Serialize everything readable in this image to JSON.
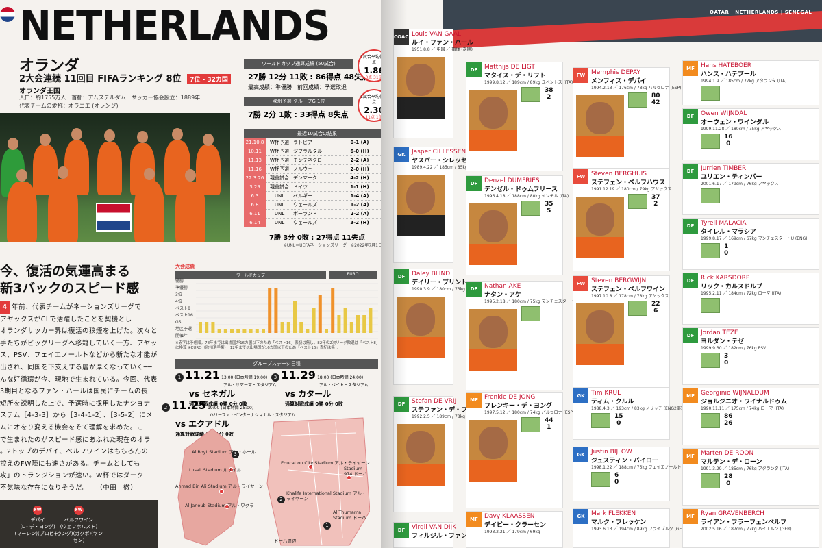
{
  "left": {
    "title": "NETHERLANDS",
    "jp_name": "オランダ",
    "sub_line": "2大会連続 11回目 FIFAランキング 8位",
    "rank_badge": "7位 - 32カ国",
    "kingdom": "オランダ王国",
    "info_1": "人口：約1755万人　首都：アムステルダム　サッカー協会設立：1889年",
    "info_2": "代表チームの愛称：オラニエ (オレンジ)",
    "wc_record_head": "ワールドカップ通算成績 (50試合)",
    "wc_record": "27勝 12分 11敗 : 86得点 48失点",
    "wc_best": "最高成績：準優勝　前回成績：予選敗退",
    "wc_circle_top": "1試合平均得失点",
    "wc_circle_val": "1.86",
    "wc_circle_sub": "3点 31位",
    "euro_record_head": "欧州予選 グループG 1位",
    "euro_record": "7勝 2分 1敗 : 33得点 8失点",
    "euro_circle_val": "2.30",
    "euro_circle_sub": "11点 1位",
    "results_head": "最近10試合の結果",
    "results": [
      {
        "date": "21.10.8",
        "cat": "W杯予選",
        "opp": "ラトビア",
        "score": "0-1 (A)"
      },
      {
        "date": "10.11",
        "cat": "W杯予選",
        "opp": "ジブラルタル",
        "score": "6-0 (H)"
      },
      {
        "date": "11.13",
        "cat": "W杯予選",
        "opp": "モンテネグロ",
        "score": "2-2 (A)"
      },
      {
        "date": "11.16",
        "cat": "W杯予選",
        "opp": "ノルウェー",
        "score": "2-0 (H)"
      },
      {
        "date": "22.3.26",
        "cat": "親善試合",
        "opp": "デンマーク",
        "score": "4-2 (H)"
      },
      {
        "date": "3.29",
        "cat": "親善試合",
        "opp": "ドイツ",
        "score": "1-1 (H)"
      },
      {
        "date": "6.3",
        "cat": "UNL",
        "opp": "ベルギー",
        "score": "1-4 (A)"
      },
      {
        "date": "6.8",
        "cat": "UNL",
        "opp": "ウェールズ",
        "score": "1-2 (A)"
      },
      {
        "date": "6.11",
        "cat": "UNL",
        "opp": "ポーランド",
        "score": "2-2 (A)"
      },
      {
        "date": "6.14",
        "cat": "UNL",
        "opp": "ウェールズ",
        "score": "3-2 (H)"
      }
    ],
    "results_total": "7勝 3分 0敗 : 27得点 11失点",
    "results_note": "※UNL＝UEFAネーションズリーグ　※2022年7月1日時点",
    "headline_1": "今、復活の気運高まる",
    "headline_2": "新3バックのスピード感",
    "drop_cap": "4",
    "body": [
      "年前、代表チームがネーションズリーグで",
      "アヤックスがCLで活躍したことを契機とし",
      "オランダサッカー界は復活の狼煙を上げた。次々と",
      "手たちがビッグリーグへ移籍していく一方、アヤッ",
      "ス、PSV、フェイエノールトなどから新たな才能が",
      "出され、同国を下支えする層が厚くなっていく──",
      "んな好循環が今、現地で生まれている。今回、代表",
      "3期目となるファン・ハールは国民にチームの長",
      "短所を説明した上で、予選時に採用したナショナ",
      "ステム［4-3-3］から［3-4-1-2］、［3-5-2］にメ",
      "ムにオをり変える機会をそて理解を求めた。こ",
      "で生まれたのがスピード感にあふれた現在のオラ",
      "。2トップのデパイ、ベルフワインはもちろんの",
      "控えのFW陣にも速さがある。チームとしても",
      "攻」のトランジションが速い。W杯ではダーク",
      "不気味な存在になりそうだ。　　（中田　徹）"
    ],
    "tourn_title": "大会成績",
    "tourn_tab_wc": "ワールドカップ",
    "tourn_tab_euro": "EURO",
    "tourn_rows": [
      "優勝",
      "準優勝",
      "3位",
      "4位",
      "ベスト8",
      "ベスト16",
      "GS",
      "地区予選",
      "開催年"
    ],
    "tourn_note": "※赤字は予想順。78年までは出場国が16カ国以下のため「ベスト16」表記は無し。82年の2次リーグ敗退は「ベスト8」に換算 ※EURO（欧州選手権）：12年までは出場国が16カ国以下のため「ベスト16」表記は無し",
    "sched_head": "グループステージ日程",
    "matches": [
      {
        "num": "1",
        "date": "11.21",
        "time": "13:00 (日本時間 19:00)",
        "venue": "アル・サマーマ・スタジアム",
        "opp": "vs セネガル",
        "rec": "通算対戦成績 0勝 0分 0敗"
      },
      {
        "num": "2",
        "date": "11.25",
        "time": "19:00 (日本時間 25:00)",
        "venue": "ハリーファ・インターナショナル・スタジアム",
        "opp": "vs エクアドル",
        "rec": "通算対戦成績 1勝 1分 0敗"
      },
      {
        "num": "3",
        "date": "11.29",
        "time": "18:00 (日本時間 24:00)",
        "venue": "アル・ベイト・スタジアム",
        "opp": "vs カタール",
        "rec": "通算対戦成績 0勝 0分 0敗"
      }
    ],
    "map_labels": [
      "Al Boyt Stadium アル・ホール",
      "Lusail Stadium ルサイル",
      "Ahmad Bin Ali Stadium アル・ライヤーン",
      "Al Janoub Stadium アル・ワクラ",
      "Education City Stadium アル・ライヤーン",
      "Stadium 974 ドーハ",
      "Khalifa International Stadium アル・ライヤーン",
      "Al Thumama Stadium ドーハ",
      "ドーハ周辺"
    ],
    "key_players": [
      {
        "pos": "FW",
        "name": "デパイ",
        "sub": "(L・デ・ヨング)",
        "sub2": "(マーレン)(ブロビー)"
      },
      {
        "pos": "FW",
        "name": "ベルフワイン",
        "sub": "(ウェフホルスト)",
        "sub2": "(ラング)(ガクポ)(ヤンセン)"
      }
    ]
  },
  "right": {
    "header": "QATAR | NETHERLANDS | SENEGAL",
    "cards": [
      {
        "pos": "COACH",
        "en": "Louis VAN GAAL",
        "jp": "ルイ・ファン・ハール",
        "meta": "1951.8.8 ／ 中国 ／ 指揮 (次期)"
      },
      {
        "pos": "GK",
        "en": "Jasper CILLESSEN",
        "jp": "ヤスパー・シレッセン",
        "meta": "1989.4.22 ／ 185cm / 85kg バレンシア (ESP)"
      },
      {
        "pos": "DF",
        "en": "Daley BLIND",
        "jp": "デイリー・ブリント",
        "meta": "1990.3.9 ／ 180cm / 73kg アヤックス"
      },
      {
        "pos": "DF",
        "en": "Stefan DE VRIJ",
        "jp": "ステファン・デ・フライ",
        "meta": "1992.2.5 ／ 189cm / 78kg インテル (ITA)"
      },
      {
        "pos": "DF",
        "en": "Virgil VAN DIJK",
        "jp": "フィルジル・ファン・ダイク",
        "meta": ""
      },
      {
        "pos": "DF",
        "en": "Matthijs DE LIGT",
        "jp": "マタイス・デ・リフト",
        "meta": "1999.8.12 ／ 189cm / 89kg ユベントス (ITA)",
        "n1": "38",
        "n2": "2"
      },
      {
        "pos": "DF",
        "en": "Denzel DUMFRIES",
        "jp": "デンゼル・ドゥムフリース",
        "meta": "1996.4.18 ／ 188cm / 80kg インテル (ITA)",
        "n1": "35",
        "n2": "5"
      },
      {
        "pos": "DF",
        "en": "Nathan AKE",
        "jp": "ナタン・アケ",
        "meta": "1995.2.18 ／ 180cm / 75kg マンチェスター・シティ (ENG)",
        "n1": "",
        "n2": ""
      },
      {
        "pos": "MF",
        "en": "Frenkie DE JONG",
        "jp": "フレンキー・デ・ヨング",
        "meta": "1997.5.12 ／ 180cm / 74kg バルセロナ (ESP)",
        "n1": "44",
        "n2": "1"
      },
      {
        "pos": "MF",
        "en": "Davy KLAASSEN",
        "jp": "デイビー・クラーセン",
        "meta": "1993.2.21 ／ 179cm / 69kg"
      },
      {
        "pos": "FW",
        "en": "Memphis DEPAY",
        "jp": "メンフィス・デパイ",
        "meta": "1994.2.13 ／ 176cm / 78kg バルセロナ (ESP)",
        "n1": "80",
        "n2": "42"
      },
      {
        "pos": "FW",
        "en": "Steven BERGHUIS",
        "jp": "ステフェン・ベルフハウス",
        "meta": "1991.12.19 ／ 180cm / 79kg アヤックス",
        "n1": "37",
        "n2": "2"
      },
      {
        "pos": "FW",
        "en": "Steven BERGWIJN",
        "jp": "ステフェン・ベルフワイン",
        "meta": "1997.10.8 ／ 178cm / 78kg アヤックス",
        "n1": "22",
        "n2": "6"
      },
      {
        "pos": "GK",
        "en": "Tim KRUL",
        "jp": "ティム・クルル",
        "meta": "1988.4.3 ／ 193cm / 83kg ノリッチ (ENG2部)",
        "n1": "15",
        "n2": "0"
      },
      {
        "pos": "GK",
        "en": "Justin BIJLOW",
        "jp": "ジュスティン・バイロー",
        "meta": "1998.1.22 ／ 188cm / 75kg フェイエノールト",
        "n1": "6",
        "n2": "0"
      },
      {
        "pos": "GK",
        "en": "Mark FLEKKEN",
        "jp": "マルク・フレッケン",
        "meta": "1993.6.13 ／ 194cm / 89kg フライブルク (GER)"
      },
      {
        "pos": "MF",
        "en": "Hans HATEBOER",
        "jp": "ハンス・ハテブール",
        "meta": "1994.1.9 ／ 185cm / 77kg アタランタ (ITA)",
        "n1": "",
        "n2": ""
      },
      {
        "pos": "DF",
        "en": "Owen WIJNDAL",
        "jp": "オーウェン・ワインダル",
        "meta": "1999.11.28 ／ 180cm / 75kg アヤックス",
        "n1": "16",
        "n2": "0"
      },
      {
        "pos": "DF",
        "en": "Jurrien TIMBER",
        "jp": "ユリエン・ティンバー",
        "meta": "2001.6.17 ／ 179cm / 76kg アヤックス",
        "n1": "",
        "n2": ""
      },
      {
        "pos": "DF",
        "en": "Tyrell MALACIA",
        "jp": "タイレル・マラシア",
        "meta": "1999.8.17 ／ 169cm / 67kg マンチェスター・U (ENG)",
        "n1": "1",
        "n2": "0"
      },
      {
        "pos": "DF",
        "en": "Rick KARSDORP",
        "jp": "リック・カルスドルプ",
        "meta": "1995.2.11 ／ 184cm / 72kg ローマ (ITA)",
        "n1": "",
        "n2": ""
      },
      {
        "pos": "DF",
        "en": "Jordan TEZE",
        "jp": "ヨルダン・テゼ",
        "meta": "1999.9.30 ／ 182cm / 76kg PSV",
        "n1": "3",
        "n2": "0"
      },
      {
        "pos": "MF",
        "en": "Georginio WIJNALDUM",
        "jp": "ジョルジニオ・ワイナルドゥム",
        "meta": "1990.11.11 ／ 175cm / 74kg ローマ (ITA)",
        "n1": "86",
        "n2": "26"
      },
      {
        "pos": "MF",
        "en": "Marten DE ROON",
        "jp": "マルテン・デ・ローン",
        "meta": "1991.3.29 ／ 185cm / 76kg アタランタ (ITA)",
        "n1": "28",
        "n2": "0"
      },
      {
        "pos": "MF",
        "en": "Ryan GRAVENBERCH",
        "jp": "ライアン・フラーフェンベルフ",
        "meta": "2002.5.16 ／ 187cm / 77kg バイエルン (GER)"
      }
    ]
  }
}
